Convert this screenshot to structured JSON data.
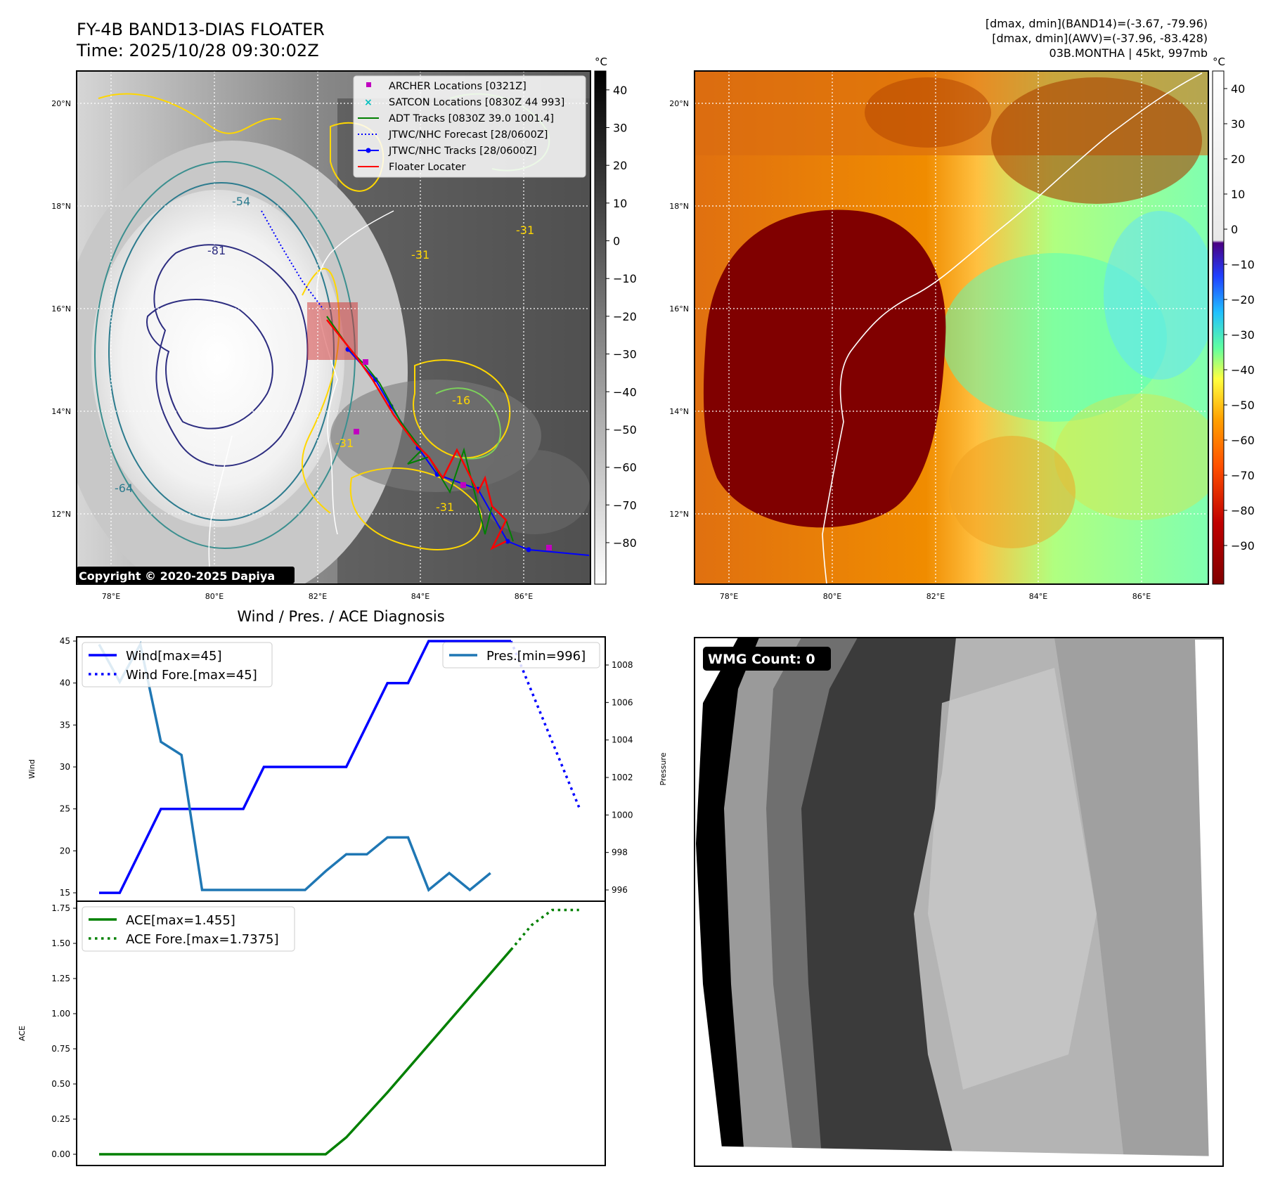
{
  "header": {
    "title_line1": "FY-4B BAND13-DIAS FLOATER",
    "title_line2": "Time: 2025/10/28 09:30:02Z",
    "info_line1": "[dmax, dmin](BAND14)=(-3.67, -79.96)",
    "info_line2": "[dmax, dmin](AWV)=(-37.96, -83.428)",
    "info_line3": "03B.MONTHA | 45kt, 997mb",
    "copyright": "Copyright © 2020-2025 Dapiya"
  },
  "maps": {
    "lon_ticks": [
      "78°E",
      "80°E",
      "82°E",
      "84°E",
      "86°E"
    ],
    "lat_ticks": [
      "20°N",
      "18°N",
      "16°N",
      "14°N",
      "12°N"
    ],
    "contour_labels": [
      "-81",
      "-64",
      "-54",
      "-31",
      "-31",
      "-31",
      "-31",
      "-16"
    ],
    "legend": [
      {
        "label": "ARCHER Locations [0321Z]",
        "color": "#c000c0",
        "marker": "square"
      },
      {
        "label": "SATCON Locations [0830Z 44 993]",
        "color": "#00bfbf",
        "marker": "x"
      },
      {
        "label": "ADT Tracks [0830Z 39.0 1001.4]",
        "color": "#008000",
        "marker": "line"
      },
      {
        "label": "JTWC/NHC Forecast [28/0600Z]",
        "color": "#0000ff",
        "marker": "dotted"
      },
      {
        "label": "JTWC/NHC Tracks [28/0600Z]",
        "color": "#0000ff",
        "marker": "line-dot"
      },
      {
        "label": "Floater Locater",
        "color": "#ff0000",
        "marker": "line"
      }
    ],
    "left_colorbar": {
      "unit": "°C",
      "ticks": [
        "40",
        "30",
        "20",
        "10",
        "0",
        "−10",
        "−20",
        "−30",
        "−40",
        "−50",
        "−60",
        "−70",
        "−80"
      ]
    },
    "right_colorbar": {
      "unit": "°C",
      "ticks": [
        "40",
        "30",
        "20",
        "10",
        "0",
        "−10",
        "−20",
        "−30",
        "−40",
        "−50",
        "−60",
        "−70",
        "−80",
        "−90"
      ]
    }
  },
  "wmg": {
    "label": "WMG Count: 0"
  },
  "colors": {
    "wind": "#0000ff",
    "pressure": "#1f77b4",
    "ace": "#008000",
    "floater": "#ff0000"
  },
  "chart_data": [
    {
      "type": "line",
      "title": "Wind / Pres. / ACE Diagnosis",
      "ylabel": "Wind",
      "y2label": "Pressure",
      "ylim": [
        14,
        45.5
      ],
      "y2lim": [
        995.4,
        1009.5
      ],
      "yticks": [
        15,
        20,
        25,
        30,
        35,
        40,
        45
      ],
      "y2ticks": [
        996,
        998,
        1000,
        1002,
        1004,
        1006,
        1008
      ],
      "x": [
        0,
        1,
        2,
        3,
        4,
        5,
        6,
        7,
        8,
        9,
        10,
        11,
        12,
        13,
        14,
        15,
        16,
        17,
        18,
        19,
        20,
        21,
        22,
        23
      ],
      "series": [
        {
          "name": "Wind[max=45]",
          "axis": "left",
          "style": "solid",
          "color": "#0000ff",
          "points": [
            [
              0,
              15
            ],
            [
              1,
              15
            ],
            [
              3,
              25
            ],
            [
              7,
              25
            ],
            [
              8,
              30
            ],
            [
              12,
              30
            ],
            [
              14,
              40
            ],
            [
              15,
              40
            ],
            [
              16,
              45
            ],
            [
              20,
              45
            ]
          ]
        },
        {
          "name": "Wind Fore.[max=45]",
          "axis": "left",
          "style": "dotted",
          "color": "#0000ff",
          "points": [
            [
              20,
              45
            ],
            [
              23.3,
              25.2
            ]
          ]
        },
        {
          "name": "Pres.[min=996]",
          "axis": "right",
          "style": "solid",
          "color": "#1f77b4",
          "points": [
            [
              0,
              1009.1
            ],
            [
              1,
              1007.1
            ],
            [
              2,
              1009.1
            ],
            [
              3,
              1003.9
            ],
            [
              4,
              1003.2
            ],
            [
              5,
              996
            ],
            [
              10,
              996
            ],
            [
              11,
              997
            ],
            [
              12,
              997.9
            ],
            [
              13,
              997.9
            ],
            [
              14,
              998.8
            ],
            [
              15,
              998.8
            ],
            [
              16,
              996
            ],
            [
              17,
              996.9
            ],
            [
              18,
              996
            ],
            [
              19,
              996.9
            ]
          ]
        }
      ]
    },
    {
      "type": "line",
      "ylabel": "ACE",
      "ylim": [
        -0.08,
        1.8
      ],
      "yticks": [
        0.0,
        0.25,
        0.5,
        0.75,
        1.0,
        1.25,
        1.5,
        1.75
      ],
      "series": [
        {
          "name": "ACE[max=1.455]",
          "style": "solid",
          "color": "#008000",
          "points": [
            [
              0,
              0
            ],
            [
              11,
              0
            ],
            [
              12,
              0.12
            ],
            [
              14,
              0.44
            ],
            [
              20,
              1.455
            ]
          ]
        },
        {
          "name": "ACE Fore.[max=1.7375]",
          "style": "dotted",
          "color": "#008000",
          "points": [
            [
              20,
              1.455
            ],
            [
              21,
              1.63
            ],
            [
              22,
              1.7375
            ],
            [
              23.3,
              1.7375
            ]
          ]
        }
      ]
    }
  ]
}
